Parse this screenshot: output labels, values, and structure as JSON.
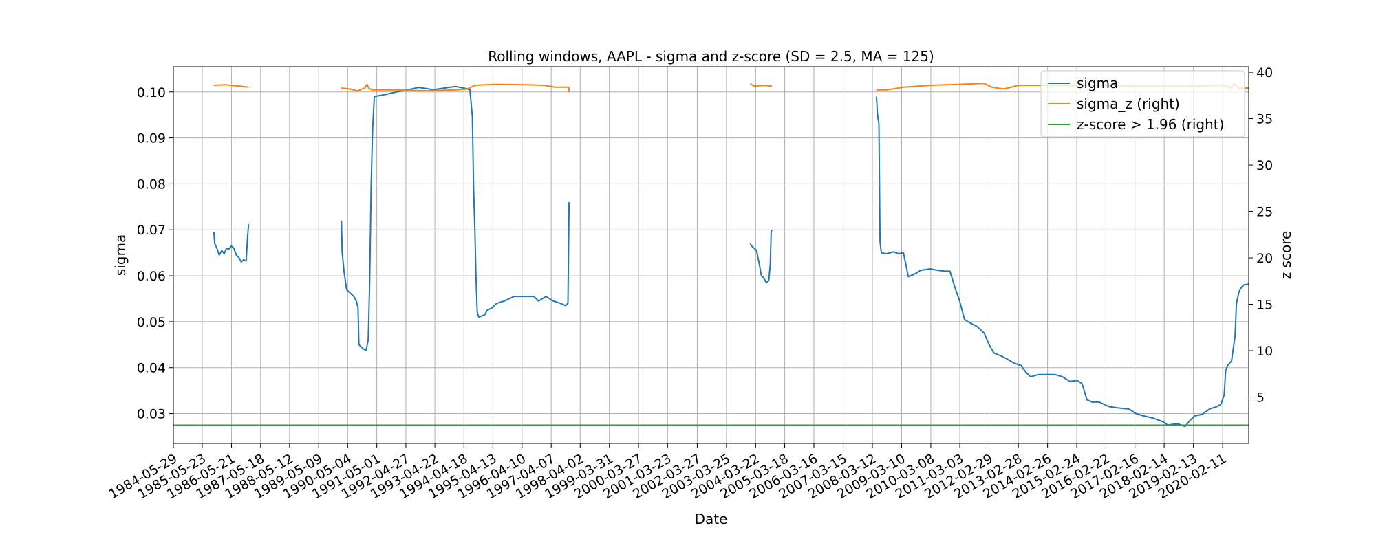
{
  "chart_data": {
    "type": "line",
    "title": "Rolling windows, AAPL - sigma and z-score (SD = 2.5, MA = 125)",
    "xlabel": "Date",
    "ylabel": "sigma",
    "ylabel_right": "z score",
    "xlim": [
      "1984-05-29",
      "2020-12-31"
    ],
    "ylim": [
      0.0235,
      0.1055
    ],
    "ylim_right": [
      0.0,
      40.6
    ],
    "grid": true,
    "legend_position": "top-right",
    "x_tick_labels": [
      "1984-05-29",
      "1985-05-23",
      "1986-05-21",
      "1987-05-18",
      "1988-05-12",
      "1989-05-09",
      "1990-05-04",
      "1991-05-01",
      "1992-04-27",
      "1993-04-22",
      "1994-04-18",
      "1995-04-13",
      "1996-04-10",
      "1997-04-07",
      "1998-04-02",
      "1999-03-31",
      "2000-03-27",
      "2001-03-23",
      "2002-03-27",
      "2003-03-25",
      "2004-03-22",
      "2005-03-18",
      "2006-03-16",
      "2007-03-15",
      "2008-03-12",
      "2009-03-10",
      "2010-03-08",
      "2011-03-03",
      "2012-02-29",
      "2013-02-28",
      "2014-02-26",
      "2015-02-24",
      "2016-02-22",
      "2017-02-16",
      "2018-02-14",
      "2019-02-13",
      "2020-02-11"
    ],
    "y_ticks": [
      0.03,
      0.04,
      0.05,
      0.06,
      0.07,
      0.08,
      0.09,
      0.1
    ],
    "y_tick_labels": [
      "0.03",
      "0.04",
      "0.05",
      "0.06",
      "0.07",
      "0.08",
      "0.09",
      "0.10"
    ],
    "y_ticks_right": [
      5,
      10,
      15,
      20,
      25,
      30,
      35,
      40
    ],
    "y_tick_labels_right": [
      "5",
      "10",
      "15",
      "20",
      "25",
      "30",
      "35",
      "40"
    ],
    "series": [
      {
        "name": "sigma",
        "axis": "left",
        "color": "#1f77b4",
        "segments": [
          [
            [
              "1985-10-15",
              0.0695
            ],
            [
              "1985-10-25",
              0.067
            ],
            [
              "1985-11-20",
              0.066
            ],
            [
              "1985-12-20",
              0.0645
            ],
            [
              "1986-01-20",
              0.0655
            ],
            [
              "1986-02-20",
              0.0648
            ],
            [
              "1986-03-20",
              0.066
            ],
            [
              "1986-04-20",
              0.0658
            ],
            [
              "1986-05-20",
              0.0665
            ],
            [
              "1986-06-20",
              0.066
            ],
            [
              "1986-07-20",
              0.0645
            ],
            [
              "1986-08-20",
              0.064
            ],
            [
              "1986-09-20",
              0.063
            ],
            [
              "1986-10-20",
              0.0635
            ],
            [
              "1986-11-20",
              0.0632
            ],
            [
              "1986-12-05",
              0.068
            ],
            [
              "1986-12-20",
              0.0712
            ]
          ],
          [
            [
              "1990-02-15",
              0.072
            ],
            [
              "1990-02-25",
              0.065
            ],
            [
              "1990-03-20",
              0.061
            ],
            [
              "1990-04-20",
              0.057
            ],
            [
              "1990-05-20",
              0.0565
            ],
            [
              "1990-06-20",
              0.056
            ],
            [
              "1990-07-20",
              0.0555
            ],
            [
              "1990-08-20",
              0.0545
            ],
            [
              "1990-09-10",
              0.053
            ],
            [
              "1990-09-20",
              0.045
            ],
            [
              "1990-10-20",
              0.0445
            ],
            [
              "1990-11-20",
              0.044
            ],
            [
              "1990-12-20",
              0.0438
            ],
            [
              "1991-01-15",
              0.046
            ],
            [
              "1991-02-01",
              0.058
            ],
            [
              "1991-02-20",
              0.08
            ],
            [
              "1991-03-10",
              0.092
            ],
            [
              "1991-04-01",
              0.099
            ],
            [
              "1991-06-01",
              0.0992
            ],
            [
              "1991-09-01",
              0.0995
            ],
            [
              "1992-01-01",
              0.1
            ],
            [
              "1992-06-01",
              0.1005
            ],
            [
              "1992-10-01",
              0.101
            ],
            [
              "1993-04-01",
              0.1005
            ],
            [
              "1993-08-01",
              0.1008
            ],
            [
              "1994-01-01",
              0.1012
            ],
            [
              "1994-05-01",
              0.1008
            ],
            [
              "1994-07-01",
              0.1005
            ],
            [
              "1994-08-01",
              0.0945
            ],
            [
              "1994-08-15",
              0.08
            ],
            [
              "1994-09-01",
              0.07
            ],
            [
              "1994-09-15",
              0.06
            ],
            [
              "1994-10-01",
              0.052
            ],
            [
              "1994-10-20",
              0.051
            ],
            [
              "1995-01-01",
              0.0515
            ],
            [
              "1995-02-01",
              0.0525
            ],
            [
              "1995-04-01",
              0.053
            ],
            [
              "1995-06-01",
              0.054
            ],
            [
              "1995-09-01",
              0.0545
            ],
            [
              "1996-01-01",
              0.0555
            ],
            [
              "1996-05-01",
              0.0555
            ],
            [
              "1996-09-01",
              0.0555
            ],
            [
              "1996-11-01",
              0.0545
            ],
            [
              "1997-02-01",
              0.0555
            ],
            [
              "1997-05-01",
              0.0545
            ],
            [
              "1997-08-01",
              0.054
            ],
            [
              "1997-10-01",
              0.0535
            ],
            [
              "1997-11-01",
              0.054
            ],
            [
              "1997-11-15",
              0.076
            ]
          ],
          [
            [
              "2004-01-15",
              0.067
            ],
            [
              "2004-02-01",
              0.0665
            ],
            [
              "2004-04-01",
              0.0655
            ],
            [
              "2004-05-01",
              0.063
            ],
            [
              "2004-06-01",
              0.06
            ],
            [
              "2004-07-01",
              0.0595
            ],
            [
              "2004-08-01",
              0.0585
            ],
            [
              "2004-09-01",
              0.059
            ],
            [
              "2004-09-20",
              0.0625
            ],
            [
              "2004-10-01",
              0.0695
            ],
            [
              "2004-10-10",
              0.07
            ]
          ],
          [
            [
              "2008-05-01",
              0.099
            ],
            [
              "2008-05-15",
              0.095
            ],
            [
              "2008-06-01",
              0.093
            ],
            [
              "2008-06-15",
              0.0675
            ],
            [
              "2008-07-01",
              0.065
            ],
            [
              "2008-09-01",
              0.0648
            ],
            [
              "2008-12-01",
              0.0652
            ],
            [
              "2009-02-01",
              0.0648
            ],
            [
              "2009-04-01",
              0.065
            ],
            [
              "2009-05-01",
              0.0625
            ],
            [
              "2009-06-01",
              0.0598
            ],
            [
              "2009-09-01",
              0.0605
            ],
            [
              "2009-11-01",
              0.0612
            ],
            [
              "2010-03-01",
              0.0615
            ],
            [
              "2010-06-01",
              0.0612
            ],
            [
              "2010-09-01",
              0.061
            ],
            [
              "2010-11-01",
              0.061
            ],
            [
              "2011-01-01",
              0.0575
            ],
            [
              "2011-03-01",
              0.0545
            ],
            [
              "2011-05-01",
              0.0505
            ],
            [
              "2011-07-01",
              0.0498
            ],
            [
              "2011-10-01",
              0.049
            ],
            [
              "2012-01-01",
              0.0475
            ],
            [
              "2012-03-01",
              0.045
            ],
            [
              "2012-05-01",
              0.0432
            ],
            [
              "2012-08-01",
              0.0425
            ],
            [
              "2012-10-01",
              0.042
            ],
            [
              "2013-01-01",
              0.041
            ],
            [
              "2013-04-01",
              0.0405
            ],
            [
              "2013-06-01",
              0.039
            ],
            [
              "2013-08-01",
              0.038
            ],
            [
              "2013-11-01",
              0.0385
            ],
            [
              "2014-03-01",
              0.0385
            ],
            [
              "2014-06-01",
              0.0385
            ],
            [
              "2014-09-01",
              0.038
            ],
            [
              "2014-12-01",
              0.037
            ],
            [
              "2015-03-01",
              0.0372
            ],
            [
              "2015-05-01",
              0.0365
            ],
            [
              "2015-07-01",
              0.033
            ],
            [
              "2015-09-01",
              0.0325
            ],
            [
              "2015-12-01",
              0.0325
            ],
            [
              "2016-04-01",
              0.0315
            ],
            [
              "2016-08-01",
              0.0312
            ],
            [
              "2016-12-01",
              0.031
            ],
            [
              "2017-03-01",
              0.03
            ],
            [
              "2017-06-01",
              0.0295
            ],
            [
              "2017-10-01",
              0.029
            ],
            [
              "2018-02-01",
              0.0282
            ],
            [
              "2018-04-01",
              0.0275
            ],
            [
              "2018-08-01",
              0.0278
            ],
            [
              "2018-11-01",
              0.0272
            ],
            [
              "2019-01-01",
              0.0285
            ],
            [
              "2019-03-01",
              0.0295
            ],
            [
              "2019-06-01",
              0.0298
            ],
            [
              "2019-09-01",
              0.031
            ],
            [
              "2019-12-01",
              0.0315
            ],
            [
              "2020-01-20",
              0.032
            ],
            [
              "2020-03-01",
              0.034
            ],
            [
              "2020-03-20",
              0.0395
            ],
            [
              "2020-04-15",
              0.0405
            ],
            [
              "2020-06-01",
              0.0415
            ],
            [
              "2020-07-15",
              0.047
            ],
            [
              "2020-08-01",
              0.054
            ],
            [
              "2020-09-01",
              0.0565
            ],
            [
              "2020-10-01",
              0.0575
            ],
            [
              "2020-11-01",
              0.058
            ],
            [
              "2020-12-31",
              0.0582
            ]
          ]
        ]
      },
      {
        "name": "sigma_z (right)",
        "axis": "right",
        "color": "#ff7f0e",
        "segments": [
          [
            [
              "1985-10-15",
              38.6
            ],
            [
              "1986-03-01",
              38.65
            ],
            [
              "1986-09-01",
              38.5
            ],
            [
              "1986-12-20",
              38.4
            ]
          ],
          [
            [
              "1990-02-15",
              38.3
            ],
            [
              "1990-06-01",
              38.2
            ],
            [
              "1990-09-01",
              38.0
            ],
            [
              "1990-12-01",
              38.3
            ],
            [
              "1991-01-01",
              38.7
            ],
            [
              "1991-01-20",
              38.3
            ],
            [
              "1991-03-01",
              38.1
            ],
            [
              "1991-09-01",
              38.1
            ],
            [
              "1992-01-01",
              38.1
            ],
            [
              "1993-01-01",
              38.0
            ],
            [
              "1994-01-01",
              38.1
            ],
            [
              "1994-06-01",
              38.2
            ],
            [
              "1994-09-01",
              38.6
            ],
            [
              "1995-06-01",
              38.7
            ],
            [
              "1996-06-01",
              38.65
            ],
            [
              "1997-01-01",
              38.6
            ],
            [
              "1997-06-01",
              38.4
            ],
            [
              "1997-11-10",
              38.4
            ],
            [
              "1997-11-15",
              37.9
            ]
          ],
          [
            [
              "2004-01-15",
              38.8
            ],
            [
              "2004-03-01",
              38.5
            ],
            [
              "2004-07-01",
              38.6
            ],
            [
              "2004-10-10",
              38.5
            ]
          ],
          [
            [
              "2008-05-01",
              38.1
            ],
            [
              "2008-09-01",
              38.1
            ],
            [
              "2009-02-01",
              38.3
            ],
            [
              "2009-04-01",
              38.4
            ],
            [
              "2010-03-01",
              38.6
            ],
            [
              "2011-03-01",
              38.7
            ],
            [
              "2012-01-01",
              38.8
            ],
            [
              "2012-04-01",
              38.4
            ],
            [
              "2012-09-01",
              38.2
            ],
            [
              "2013-03-01",
              38.6
            ],
            [
              "2014-03-01",
              38.6
            ],
            [
              "2015-03-01",
              38.6
            ],
            [
              "2016-03-01",
              38.6
            ],
            [
              "2017-03-01",
              38.5
            ],
            [
              "2018-03-01",
              38.5
            ],
            [
              "2019-03-01",
              38.5
            ],
            [
              "2020-03-01",
              38.6
            ],
            [
              "2020-06-01",
              38.3
            ],
            [
              "2020-07-01",
              38.8
            ],
            [
              "2020-09-01",
              38.3
            ],
            [
              "2020-12-31",
              38.3
            ]
          ]
        ]
      },
      {
        "name": "z-score > 1.96 (right)",
        "axis": "right",
        "color": "#2ca02c",
        "segments": [
          [
            [
              "1984-05-29",
              1.96
            ],
            [
              "2020-12-31",
              1.96
            ]
          ]
        ]
      }
    ]
  }
}
